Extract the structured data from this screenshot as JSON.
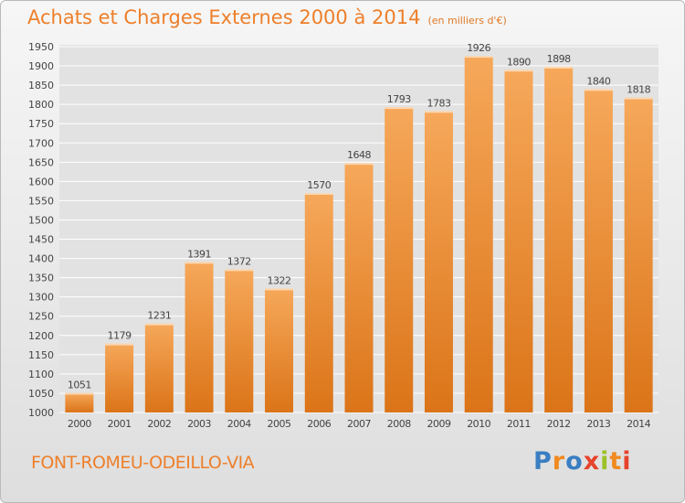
{
  "title": "Achats et Charges Externes 2000 à 2014",
  "subtitle": "(en milliers d'€)",
  "commune": "FONT-ROMEU-ODEILLO-VIA",
  "logo": {
    "text": "Proxiti",
    "icon": "proxiti-logo"
  },
  "colors": {
    "accent": "#ee7f2a",
    "bar_top": "#f6a85a",
    "bar_bottom": "#db7418",
    "grid": "#ffffff"
  },
  "chart_data": {
    "type": "bar",
    "title": "Achats et Charges Externes 2000 à 2014",
    "subtitle": "(en milliers d'€)",
    "xlabel": "",
    "ylabel": "",
    "categories": [
      "2000",
      "2001",
      "2002",
      "2003",
      "2004",
      "2005",
      "2006",
      "2007",
      "2008",
      "2009",
      "2010",
      "2011",
      "2012",
      "2013",
      "2014"
    ],
    "values": [
      1051,
      1179,
      1231,
      1391,
      1372,
      1322,
      1570,
      1648,
      1793,
      1783,
      1926,
      1890,
      1898,
      1840,
      1818
    ],
    "ylim": [
      1000,
      1950
    ],
    "yticks": [
      1000,
      1050,
      1100,
      1150,
      1200,
      1250,
      1300,
      1350,
      1400,
      1450,
      1500,
      1550,
      1600,
      1650,
      1700,
      1750,
      1800,
      1850,
      1900,
      1950
    ],
    "grid": true,
    "data_labels": true
  }
}
